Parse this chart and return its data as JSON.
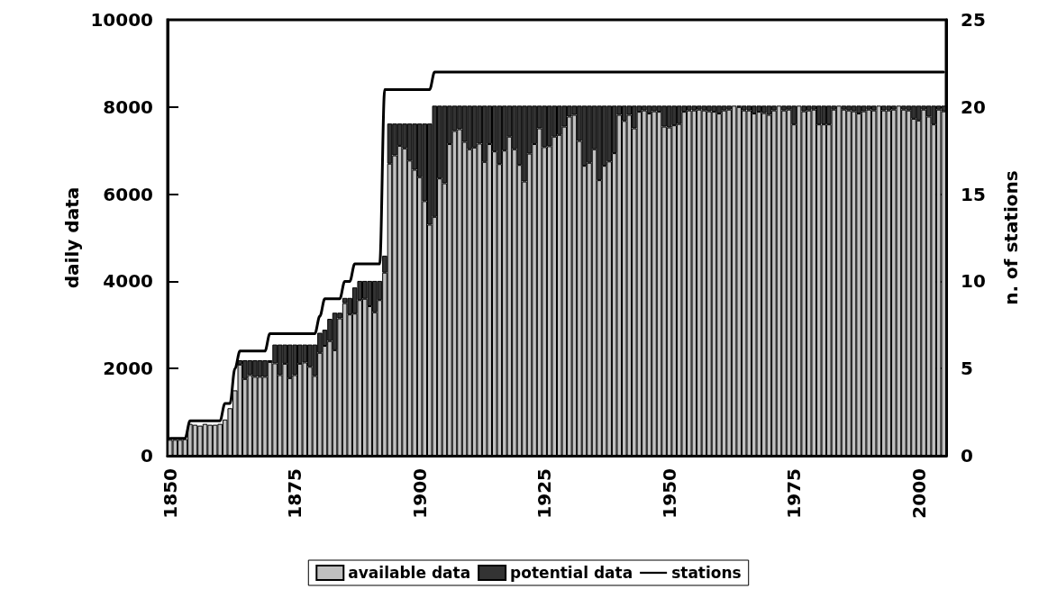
{
  "chart_data": {
    "type": "bar",
    "stacked": true,
    "ylabel": "daily data",
    "y2label": "n. of stations",
    "categories": [
      "1850",
      null,
      null,
      null,
      null,
      null,
      null,
      null,
      null,
      null,
      null,
      null,
      null,
      null,
      null,
      null,
      null,
      null,
      null,
      null,
      null,
      null,
      null,
      null,
      null,
      "1875",
      null,
      null,
      null,
      null,
      null,
      null,
      null,
      null,
      null,
      null,
      null,
      null,
      null,
      null,
      null,
      null,
      null,
      null,
      null,
      null,
      null,
      null,
      null,
      null,
      "1900",
      null,
      null,
      null,
      null,
      null,
      null,
      null,
      null,
      null,
      null,
      null,
      null,
      null,
      null,
      null,
      null,
      null,
      null,
      null,
      null,
      null,
      null,
      null,
      null,
      "1925",
      null,
      null,
      null,
      null,
      null,
      null,
      null,
      null,
      null,
      null,
      null,
      null,
      null,
      null,
      null,
      null,
      null,
      null,
      null,
      null,
      null,
      null,
      null,
      null,
      "1950",
      null,
      null,
      null,
      null,
      null,
      null,
      null,
      null,
      null,
      null,
      null,
      null,
      null,
      null,
      null,
      null,
      null,
      null,
      null,
      null,
      null,
      null,
      null,
      null,
      "1975",
      null,
      null,
      null,
      null,
      null,
      null,
      null,
      null,
      null,
      null,
      null,
      null,
      null,
      null,
      null,
      null,
      null,
      null,
      null,
      null,
      null,
      null,
      null,
      null,
      "2000",
      null,
      null,
      null,
      null,
      null
    ],
    "series": [
      {
        "name": "available data",
        "color": "#c0c0c0",
        "values": [
          365,
          365,
          365,
          380,
          730,
          710,
          690,
          730,
          710,
          710,
          730,
          830,
          1090,
          1500,
          2090,
          1760,
          1850,
          1810,
          1810,
          1810,
          2150,
          2120,
          1850,
          2110,
          1780,
          1850,
          2110,
          2140,
          2040,
          1830,
          2360,
          2520,
          2630,
          2420,
          3150,
          3500,
          3240,
          3260,
          3570,
          3600,
          3430,
          3290,
          3570,
          4200,
          6700,
          6890,
          7110,
          7050,
          6770,
          6560,
          6390,
          5840,
          5300,
          5480,
          6360,
          6250,
          7150,
          7450,
          7490,
          7200,
          7030,
          7070,
          7160,
          6740,
          7150,
          6980,
          6690,
          7000,
          7320,
          7030,
          6670,
          6290,
          6930,
          7150,
          7510,
          7080,
          7100,
          7320,
          7360,
          7550,
          7780,
          7820,
          7220,
          6650,
          6720,
          7030,
          6320,
          6650,
          6750,
          6940,
          7820,
          7680,
          7820,
          7510,
          7890,
          7920,
          7850,
          7900,
          7890,
          7550,
          7530,
          7580,
          7610,
          7890,
          7920,
          7920,
          7940,
          7920,
          7900,
          7890,
          7850,
          7920,
          7940,
          8030,
          8000,
          7920,
          7920,
          7850,
          7890,
          7860,
          7820,
          7920,
          8030,
          7920,
          7940,
          7600,
          8030,
          7900,
          7920,
          7940,
          7600,
          7600,
          7600,
          7940,
          8030,
          7940,
          7920,
          7900,
          7850,
          7900,
          7940,
          7920,
          8030,
          7920,
          7920,
          7940,
          8030,
          7940,
          7920,
          7730,
          7690,
          7940,
          7780,
          7600,
          7940,
          7900
        ]
      },
      {
        "name": "potential data",
        "color": "#333333",
        "values": [
          0,
          0,
          0,
          0,
          0,
          0,
          0,
          0,
          0,
          0,
          0,
          0,
          0,
          0,
          100,
          430,
          340,
          380,
          380,
          380,
          40,
          430,
          700,
          440,
          770,
          700,
          440,
          410,
          510,
          720,
          460,
          370,
          510,
          860,
          130,
          120,
          380,
          600,
          440,
          410,
          580,
          720,
          440,
          390,
          920,
          730,
          510,
          570,
          850,
          1060,
          1230,
          1780,
          2320,
          2550,
          1670,
          1780,
          880,
          580,
          540,
          830,
          1000,
          960,
          870,
          1290,
          880,
          1050,
          1340,
          1030,
          710,
          1000,
          1360,
          1740,
          1100,
          880,
          520,
          950,
          930,
          710,
          670,
          480,
          250,
          210,
          810,
          1380,
          1310,
          1000,
          1710,
          1380,
          1280,
          1090,
          210,
          350,
          210,
          520,
          140,
          110,
          180,
          130,
          140,
          480,
          500,
          450,
          420,
          140,
          110,
          110,
          90,
          110,
          130,
          140,
          180,
          110,
          90,
          0,
          30,
          110,
          110,
          180,
          140,
          170,
          210,
          110,
          0,
          110,
          90,
          430,
          0,
          130,
          110,
          90,
          430,
          430,
          430,
          90,
          0,
          90,
          110,
          130,
          180,
          130,
          90,
          110,
          0,
          110,
          110,
          90,
          0,
          90,
          110,
          300,
          340,
          90,
          250,
          430,
          90,
          130
        ]
      },
      {
        "name": "stations",
        "type": "line",
        "axis": "y2",
        "color": "#000000",
        "marker": "none",
        "line_style": "solid",
        "values": [
          1,
          1,
          1,
          1,
          2,
          2,
          2,
          2,
          2,
          2,
          2,
          3,
          3,
          5,
          6,
          6,
          6,
          6,
          6,
          6,
          7,
          7,
          7,
          7,
          7,
          7,
          7,
          7,
          7,
          7,
          8,
          9,
          9,
          9,
          9,
          10,
          10,
          11,
          11,
          11,
          11,
          11,
          11,
          21,
          21,
          21,
          21,
          21,
          21,
          21,
          21,
          21,
          21,
          22,
          22,
          22,
          22,
          22,
          22,
          22,
          22,
          22,
          22,
          22,
          22,
          22,
          22,
          22,
          22,
          22,
          22,
          22,
          22,
          22,
          22,
          22,
          22,
          22,
          22,
          22,
          22,
          22,
          22,
          22,
          22,
          22,
          22,
          22,
          22,
          22,
          22,
          22,
          22,
          22,
          22,
          22,
          22,
          22,
          22,
          22,
          22,
          22,
          22,
          22,
          22,
          22,
          22,
          22,
          22,
          22,
          22,
          22,
          22,
          22,
          22,
          22,
          22,
          22,
          22,
          22,
          22,
          22,
          22,
          22,
          22,
          22,
          22,
          22,
          22,
          22,
          22,
          22,
          22,
          22,
          22,
          22,
          22,
          22,
          22,
          22,
          22,
          22,
          22,
          22,
          22,
          22,
          22,
          22,
          22,
          22,
          22,
          22,
          22,
          22,
          22,
          22
        ]
      }
    ],
    "ylim": [
      0,
      10000
    ],
    "yticks": [
      0,
      2000,
      4000,
      6000,
      8000,
      10000
    ],
    "y2lim": [
      0,
      25
    ],
    "y2ticks": [
      0,
      5,
      10,
      15,
      20,
      25
    ],
    "grid": false,
    "legend": "bottom"
  }
}
